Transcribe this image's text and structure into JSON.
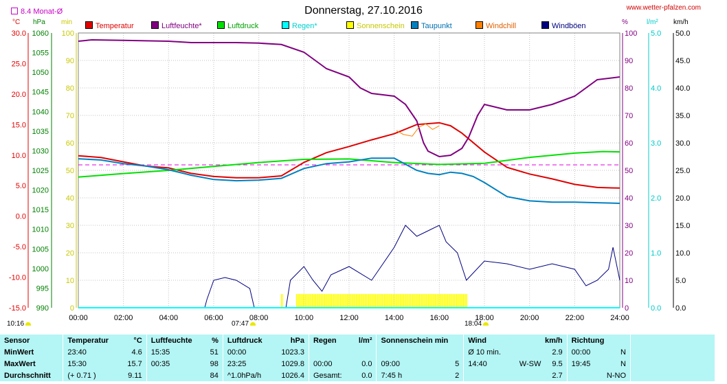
{
  "title": "Donnerstag, 27.10.2016",
  "site": "www.wetter-pfalzen.com",
  "monat_label": "8.4 Monat-Ø",
  "unit_labels": {
    "temp": "°C",
    "pressure": "hPa",
    "sun": "min",
    "humidity": "%",
    "rain": "l/m²",
    "wind": "km/h"
  },
  "legend": [
    {
      "label": "Temperatur",
      "color": "#e00000"
    },
    {
      "label": "Luftfeuchte*",
      "color": "#800080"
    },
    {
      "label": "Luftdruck",
      "color": "#00e000"
    },
    {
      "label": "Regen*",
      "color": "#00ffff"
    },
    {
      "label": "Sonnenschein",
      "color": "#ffff00"
    },
    {
      "label": "Taupunkt",
      "color": "#0080c0"
    },
    {
      "label": "Windchill",
      "color": "#ff8000"
    },
    {
      "label": "Windböen",
      "color": "#000080"
    }
  ],
  "sun_labels": {
    "rise": "07:47",
    "set": "18:04",
    "left": "10:16"
  },
  "chart_data": {
    "type": "line",
    "title": "Donnerstag, 27.10.2016",
    "x_ticks": [
      "00:00",
      "02:00",
      "04:00",
      "06:00",
      "08:00",
      "10:00",
      "12:00",
      "14:00",
      "16:00",
      "18:00",
      "20:00",
      "22:00",
      "24:00"
    ],
    "axes": {
      "temp_c": {
        "range": [
          -15,
          30
        ],
        "ticks": [
          "30.0",
          "25.0",
          "20.0",
          "15.0",
          "10.0",
          "5.0",
          "0.0",
          "-5.0",
          "-10.0",
          "-15.0"
        ]
      },
      "pressure_hpa": {
        "range": [
          990,
          1060
        ],
        "ticks": [
          "1060",
          "1055",
          "1050",
          "1045",
          "1040",
          "1035",
          "1030",
          "1025",
          "1020",
          "1015",
          "1010",
          "1005",
          "1000",
          "995",
          "990"
        ]
      },
      "sun_min": {
        "range": [
          0,
          100
        ],
        "ticks": [
          "100",
          "90",
          "80",
          "70",
          "60",
          "50",
          "40",
          "30",
          "20",
          "10",
          "0"
        ]
      },
      "humidity_pct": {
        "range": [
          0,
          100
        ],
        "ticks": [
          "100",
          "90",
          "80",
          "70",
          "60",
          "50",
          "40",
          "30",
          "20",
          "10",
          "0"
        ]
      },
      "rain_lm2": {
        "range": [
          0,
          5
        ],
        "ticks": [
          "5.0",
          "4.0",
          "3.0",
          "2.0",
          "1.0",
          "0.0"
        ]
      },
      "wind_kmh": {
        "range": [
          0,
          50
        ],
        "ticks": [
          "50.0",
          "45.0",
          "40.0",
          "35.0",
          "30.0",
          "25.0",
          "20.0",
          "15.0",
          "10.0",
          "5.0",
          "0.0"
        ]
      }
    },
    "monthly_avg_temp": 8.4,
    "series": [
      {
        "name": "Temperatur",
        "axis": "temp_c",
        "color": "#e00000",
        "points": [
          [
            0,
            9.9
          ],
          [
            1,
            9.6
          ],
          [
            2,
            8.9
          ],
          [
            3,
            8.2
          ],
          [
            4,
            7.9
          ],
          [
            5,
            7.0
          ],
          [
            6,
            6.5
          ],
          [
            7,
            6.3
          ],
          [
            8,
            6.3
          ],
          [
            9,
            6.6
          ],
          [
            10,
            8.8
          ],
          [
            11,
            10.4
          ],
          [
            12,
            11.4
          ],
          [
            13,
            12.5
          ],
          [
            14,
            13.5
          ],
          [
            15,
            15.0
          ],
          [
            16,
            15.3
          ],
          [
            16.5,
            14.8
          ],
          [
            17,
            13.6
          ],
          [
            18,
            10.5
          ],
          [
            19,
            8.0
          ],
          [
            20,
            6.9
          ],
          [
            21,
            6.1
          ],
          [
            22,
            5.2
          ],
          [
            23,
            4.7
          ],
          [
            24,
            4.6
          ]
        ]
      },
      {
        "name": "Luftfeuchte*",
        "axis": "humidity_pct",
        "color": "#800080",
        "points": [
          [
            0,
            97
          ],
          [
            0.6,
            97.5
          ],
          [
            2,
            97.3
          ],
          [
            4,
            97
          ],
          [
            5,
            96.5
          ],
          [
            6,
            96.5
          ],
          [
            7,
            96.5
          ],
          [
            8,
            96.3
          ],
          [
            9,
            95.8
          ],
          [
            10,
            93
          ],
          [
            10.5,
            90
          ],
          [
            11,
            87
          ],
          [
            12,
            84
          ],
          [
            12.5,
            80
          ],
          [
            13,
            78
          ],
          [
            14,
            77
          ],
          [
            14.5,
            74
          ],
          [
            15,
            68
          ],
          [
            15.3,
            60
          ],
          [
            15.5,
            57
          ],
          [
            16,
            55
          ],
          [
            16.5,
            55.5
          ],
          [
            17,
            58
          ],
          [
            17.3,
            62
          ],
          [
            17.7,
            70
          ],
          [
            18,
            74
          ],
          [
            18.5,
            73
          ],
          [
            19,
            72
          ],
          [
            20,
            72
          ],
          [
            21,
            74
          ],
          [
            22,
            77
          ],
          [
            23,
            83
          ],
          [
            24,
            84
          ]
        ]
      },
      {
        "name": "Luftdruck",
        "axis": "pressure_hpa",
        "color": "#00e000",
        "points": [
          [
            0,
            1023.3
          ],
          [
            2,
            1024.2
          ],
          [
            4,
            1025
          ],
          [
            6,
            1026
          ],
          [
            8,
            1027
          ],
          [
            10,
            1027.8
          ],
          [
            12,
            1027.9
          ],
          [
            14,
            1027
          ],
          [
            16,
            1026.5
          ],
          [
            18,
            1026.8
          ],
          [
            20,
            1028.3
          ],
          [
            22,
            1029.4
          ],
          [
            23.25,
            1029.8
          ],
          [
            24,
            1029.7
          ]
        ]
      },
      {
        "name": "Taupunkt",
        "axis": "temp_c",
        "color": "#0080c0",
        "points": [
          [
            0,
            9.4
          ],
          [
            1,
            9.2
          ],
          [
            2,
            8.6
          ],
          [
            3,
            8.2
          ],
          [
            4,
            7.6
          ],
          [
            5,
            6.7
          ],
          [
            6,
            6.0
          ],
          [
            7,
            5.8
          ],
          [
            8,
            5.9
          ],
          [
            9,
            6.2
          ],
          [
            10,
            7.8
          ],
          [
            11,
            8.6
          ],
          [
            12,
            8.9
          ],
          [
            13,
            9.5
          ],
          [
            14,
            9.5
          ],
          [
            14.5,
            8.5
          ],
          [
            15,
            7.5
          ],
          [
            15.5,
            7.0
          ],
          [
            16,
            6.8
          ],
          [
            16.5,
            7.2
          ],
          [
            17,
            7.0
          ],
          [
            17.5,
            6.5
          ],
          [
            18,
            5.5
          ],
          [
            19,
            3.2
          ],
          [
            20,
            2.5
          ],
          [
            21,
            2.3
          ],
          [
            22,
            2.3
          ],
          [
            23,
            2.2
          ],
          [
            24,
            2.1
          ]
        ]
      },
      {
        "name": "Windchill",
        "axis": "temp_c",
        "color": "#ff8000",
        "points": [
          [
            14.1,
            14.0
          ],
          [
            14.4,
            13.4
          ],
          [
            14.8,
            13.1
          ],
          [
            15.1,
            14.6
          ],
          [
            15.4,
            15.1
          ],
          [
            15.7,
            14.2
          ],
          [
            16,
            14.8
          ]
        ]
      },
      {
        "name": "Windböen",
        "axis": "wind_kmh",
        "color": "#000080",
        "points": [
          [
            5.6,
            0
          ],
          [
            5.7,
            1.5
          ],
          [
            6,
            5
          ],
          [
            6.5,
            5.5
          ],
          [
            7,
            5
          ],
          [
            7.6,
            3.5
          ],
          [
            7.8,
            0
          ],
          [
            9.2,
            0
          ],
          [
            9.4,
            5
          ],
          [
            10,
            7.5
          ],
          [
            10.4,
            5
          ],
          [
            10.8,
            3
          ],
          [
            11.2,
            6
          ],
          [
            12,
            7.5
          ],
          [
            13,
            5
          ],
          [
            13.5,
            8
          ],
          [
            14,
            11
          ],
          [
            14.5,
            15
          ],
          [
            15,
            13
          ],
          [
            15.5,
            14
          ],
          [
            16,
            15
          ],
          [
            16.3,
            12
          ],
          [
            16.8,
            10
          ],
          [
            17.2,
            5
          ],
          [
            18,
            8.5
          ],
          [
            19,
            8
          ],
          [
            20,
            7
          ],
          [
            21,
            8
          ],
          [
            22,
            7
          ],
          [
            22.5,
            4
          ],
          [
            23,
            5
          ],
          [
            23.5,
            7
          ],
          [
            23.7,
            11
          ],
          [
            24,
            5
          ]
        ]
      },
      {
        "name": "Regen*",
        "axis": "rain_lm2",
        "color": "#00ffff",
        "points": [
          [
            0,
            0
          ],
          [
            24,
            0
          ]
        ]
      }
    ],
    "sunshine_block": {
      "axis": "sun_min",
      "color": "#ffff00",
      "start_hour": 9.67,
      "end_hour": 17.25,
      "value_min": 5
    },
    "sunshine_early": {
      "axis": "sun_min",
      "color": "#ffff00",
      "start_hour": 9.0,
      "end_hour": 9.1,
      "value_min": 5
    }
  },
  "stats": {
    "headers": {
      "sensor": "Sensor",
      "temp": "Temperatur",
      "temp_u": "°C",
      "hum": "Luftfeuchte",
      "hum_u": "%",
      "press": "Luftdruck",
      "press_u": "hPa",
      "rain": "Regen",
      "rain_u": "l/m²",
      "sun": "Sonnenschein min",
      "wind": "Wind",
      "wind_u": "km/h",
      "dir": "Richtung"
    },
    "min": {
      "label": "MinWert",
      "t_time": "23:40",
      "t_val": "4.6",
      "h_time": "15:35",
      "h_val": "51",
      "p_time": "00:00",
      "p_val": "1023.3",
      "w_label": "Ø 10 min.",
      "w_val": "2.9",
      "d_time": "00:00",
      "d_val": "N"
    },
    "max": {
      "label": "MaxWert",
      "t_time": "15:30",
      "t_val": "15.7",
      "h_time": "00:35",
      "h_val": "98",
      "p_time": "23:25",
      "p_val": "1029.8",
      "r_time": "00:00",
      "r_val": "0.0",
      "s_time": "09:00",
      "s_val": "5",
      "w_time": "14:40",
      "w_dir": "W-SW",
      "w_val": "9.5",
      "d_time": "19:45",
      "d_val": "N"
    },
    "avg": {
      "label": "Durchschnitt",
      "t_trend": "(+ 0.71 )",
      "t_val": "9.11",
      "h_val": "84",
      "p_trend": "^1.0hPa/h",
      "p_val": "1026.4",
      "r_label": "Gesamt:",
      "r_val": "0.0",
      "s_time": "7:45 h",
      "s_val": "2",
      "w_val": "2.7",
      "d_val": "N-NO"
    }
  }
}
